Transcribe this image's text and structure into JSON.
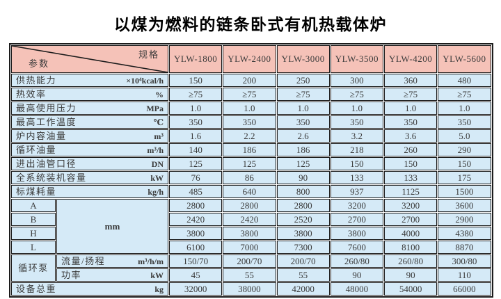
{
  "title": "以煤为燃料的链条卧式有机热载体炉",
  "table": {
    "corner": {
      "top_right": "规格",
      "bottom_left": "参数"
    },
    "columns": [
      "YLW-1800",
      "YLW-2400",
      "YLW-3000",
      "YLW-3500",
      "YLW-4200",
      "YLW-5600"
    ],
    "dim_unit": "mm",
    "rows": [
      {
        "kind": "param",
        "name": "供热能力",
        "unit": "×10⁴kcal/h",
        "values": [
          "150",
          "200",
          "250",
          "300",
          "360",
          "480"
        ]
      },
      {
        "kind": "param",
        "name": "热效率",
        "unit": "%",
        "values": [
          "≥75",
          "≥75",
          "≥75",
          "≥75",
          "≥75",
          "≥75"
        ]
      },
      {
        "kind": "param",
        "name": "最高使用压力",
        "unit": "MPa",
        "values": [
          "1.0",
          "1.0",
          "1.0",
          "1.0",
          "1.0",
          "1.0"
        ]
      },
      {
        "kind": "param",
        "name": "最高工作温度",
        "unit": "℃",
        "values": [
          "350",
          "350",
          "350",
          "350",
          "350",
          "350"
        ]
      },
      {
        "kind": "param",
        "name": "炉内容油量",
        "unit": "m³",
        "values": [
          "1.6",
          "2.2",
          "2.6",
          "3.2",
          "3.6",
          "5.0"
        ]
      },
      {
        "kind": "param",
        "name": "循环油量",
        "unit": "m³/h",
        "values": [
          "140",
          "186",
          "186",
          "218",
          "260",
          "290"
        ]
      },
      {
        "kind": "param",
        "name": "进出油管口径",
        "unit": "DN",
        "values": [
          "125",
          "125",
          "125",
          "150",
          "150",
          "150"
        ]
      },
      {
        "kind": "param",
        "name": "全系统装机容量",
        "unit": "kW",
        "values": [
          "76",
          "86",
          "90",
          "133",
          "133",
          "175"
        ]
      },
      {
        "kind": "param",
        "name": "标煤耗量",
        "unit": "kg/h",
        "values": [
          "485",
          "640",
          "800",
          "937",
          "1125",
          "1500"
        ]
      },
      {
        "kind": "dim-first",
        "name": "A",
        "values": [
          "2800",
          "2800",
          "2800",
          "3200",
          "3200",
          "3600"
        ]
      },
      {
        "kind": "dim",
        "name": "B",
        "values": [
          "2420",
          "2420",
          "2520",
          "2700",
          "2700",
          "2900"
        ]
      },
      {
        "kind": "dim",
        "name": "H",
        "values": [
          "3800",
          "3800",
          "3800",
          "3800",
          "4000",
          "4380"
        ]
      },
      {
        "kind": "dim",
        "name": "L",
        "values": [
          "6100",
          "7000",
          "7300",
          "7600",
          "8100",
          "8870"
        ]
      },
      {
        "kind": "pump-first",
        "group": "循环泵",
        "name": "流量/扬程",
        "unit": "m³/h/m",
        "values": [
          "150/70",
          "200/70",
          "200/70",
          "260/80",
          "260/80",
          "300/80"
        ]
      },
      {
        "kind": "pump",
        "name": "功率",
        "unit": "kW",
        "values": [
          "45",
          "55",
          "55",
          "90",
          "90",
          "110"
        ]
      },
      {
        "kind": "param",
        "name": "设备总重",
        "unit": "kg",
        "values": [
          "32000",
          "38000",
          "42000",
          "48000",
          "54000",
          "66000"
        ]
      }
    ],
    "colors": {
      "header_bg": "#f5c2b8",
      "cell_bg": "#d5eaf7",
      "border": "#1c1c1c",
      "text": "#3a3a3a"
    }
  }
}
